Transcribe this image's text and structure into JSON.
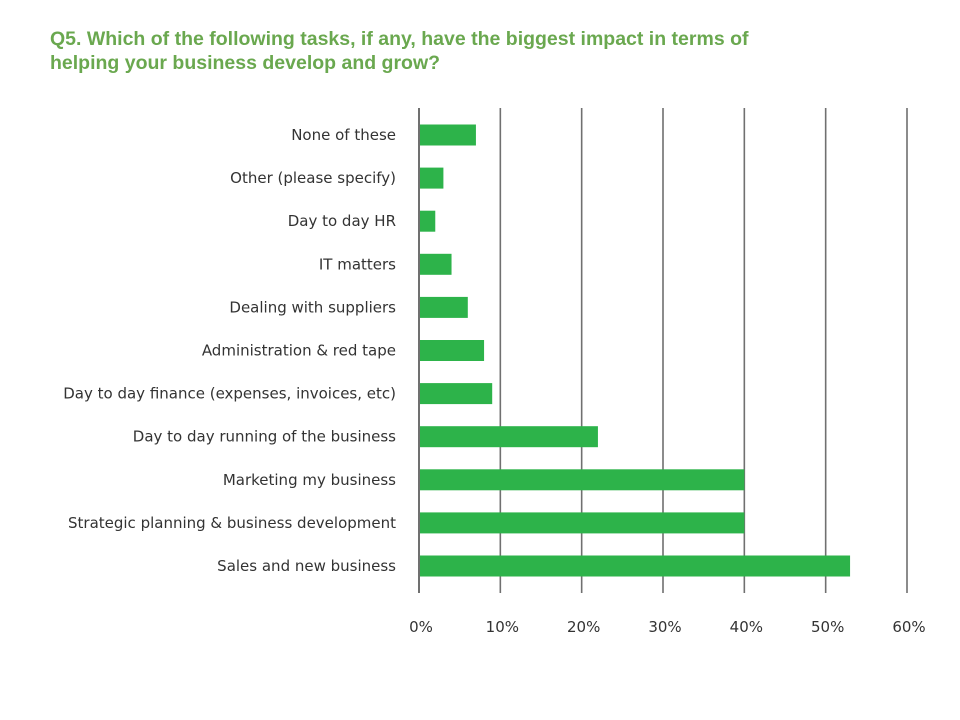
{
  "question": {
    "line1": "Q5. Which of the following tasks, if any, have the biggest impact in terms of",
    "line2": "helping your business develop and grow?"
  },
  "colors": {
    "title": "#6aa84f",
    "bar": "#2db34a",
    "grid": "#707070",
    "text": "#333333"
  },
  "chart_data": {
    "type": "bar",
    "orientation": "horizontal",
    "categories": [
      "None of these",
      "Other (please specify)",
      "Day to day HR",
      "IT matters",
      "Dealing with suppliers",
      "Administration & red tape",
      "Day to day finance (expenses, invoices, etc)",
      "Day to day running of the business",
      "Marketing my business",
      "Strategic planning & business development",
      "Sales and new business"
    ],
    "values": [
      7,
      3,
      2,
      4,
      6,
      8,
      9,
      22,
      40,
      40,
      53
    ],
    "xlim": [
      0,
      60
    ],
    "ticks": [
      0,
      10,
      20,
      30,
      40,
      50,
      60
    ],
    "tick_labels": [
      "0%",
      "10%",
      "20%",
      "30%",
      "40%",
      "50%",
      "60%"
    ],
    "grid": true,
    "legend": "none"
  }
}
